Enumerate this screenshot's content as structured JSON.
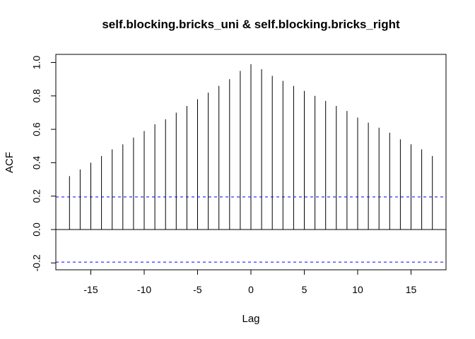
{
  "chart_data": {
    "type": "bar",
    "title": "self.blocking.bricks_uni & self.blocking.bricks_right",
    "xlabel": "Lag",
    "ylabel": "ACF",
    "xlim": [
      -18,
      18
    ],
    "ylim": [
      -0.24,
      1.0
    ],
    "x_ticks": [
      -15,
      -10,
      -5,
      0,
      5,
      10,
      15
    ],
    "x_tick_labels": [
      "-15",
      "-10",
      "-5",
      "0",
      "5",
      "10",
      "15"
    ],
    "y_ticks": [
      -0.2,
      0.0,
      0.2,
      0.4,
      0.6,
      0.8,
      1.0
    ],
    "y_tick_labels": [
      "-0.2",
      "0.0",
      "0.2",
      "0.4",
      "0.6",
      "0.8",
      "1.0"
    ],
    "x": [
      -17,
      -16,
      -15,
      -14,
      -13,
      -12,
      -11,
      -10,
      -9,
      -8,
      -7,
      -6,
      -5,
      -4,
      -3,
      -2,
      -1,
      0,
      1,
      2,
      3,
      4,
      5,
      6,
      7,
      8,
      9,
      10,
      11,
      12,
      13,
      14,
      15,
      16,
      17
    ],
    "values": [
      0.32,
      0.36,
      0.4,
      0.44,
      0.48,
      0.51,
      0.55,
      0.59,
      0.63,
      0.66,
      0.7,
      0.74,
      0.78,
      0.82,
      0.86,
      0.9,
      0.95,
      0.99,
      0.96,
      0.92,
      0.89,
      0.86,
      0.83,
      0.8,
      0.77,
      0.74,
      0.71,
      0.67,
      0.64,
      0.61,
      0.58,
      0.54,
      0.51,
      0.48,
      0.44
    ],
    "confidence_bounds": [
      0.195,
      -0.195
    ],
    "confidence_color": "#0000ff",
    "bar_color": "#000000",
    "grid": false
  }
}
